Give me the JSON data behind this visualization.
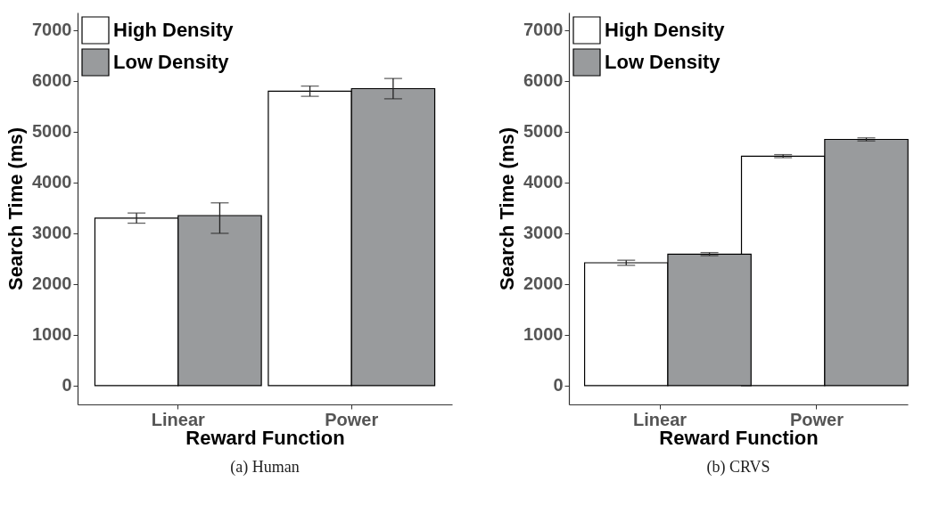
{
  "chart_data": [
    {
      "type": "bar",
      "title": "(a) Human",
      "xlabel": "Reward Function",
      "ylabel": "Search Time (ms)",
      "categories": [
        "Linear",
        "Power"
      ],
      "series": [
        {
          "name": "High Density",
          "color": "#ffffff",
          "values": [
            3300,
            5800
          ],
          "errors": [
            100,
            100
          ]
        },
        {
          "name": "Low Density",
          "color": "#999b9d",
          "values": [
            3350,
            5850
          ],
          "errors": [
            [
              3000,
              3600
            ],
            [
              5650,
              6050
            ]
          ]
        }
      ],
      "ylim": [
        -370,
        7350
      ],
      "yticks": [
        0,
        1000,
        2000,
        3000,
        4000,
        5000,
        6000,
        7000
      ],
      "legend": "top left",
      "grid": false
    },
    {
      "type": "bar",
      "title": "(b) CRVS",
      "xlabel": "Reward Function",
      "ylabel": "Search Time (ms)",
      "categories": [
        "Linear",
        "Power"
      ],
      "series": [
        {
          "name": "High Density",
          "color": "#ffffff",
          "values": [
            2420,
            4520
          ],
          "errors": [
            50,
            30
          ]
        },
        {
          "name": "Low Density",
          "color": "#999b9d",
          "values": [
            2590,
            4850
          ],
          "errors": [
            30,
            30
          ]
        }
      ],
      "ylim": [
        -370,
        7350
      ],
      "yticks": [
        0,
        1000,
        2000,
        3000,
        4000,
        5000,
        6000,
        7000
      ],
      "legend": "top left",
      "grid": false
    }
  ]
}
